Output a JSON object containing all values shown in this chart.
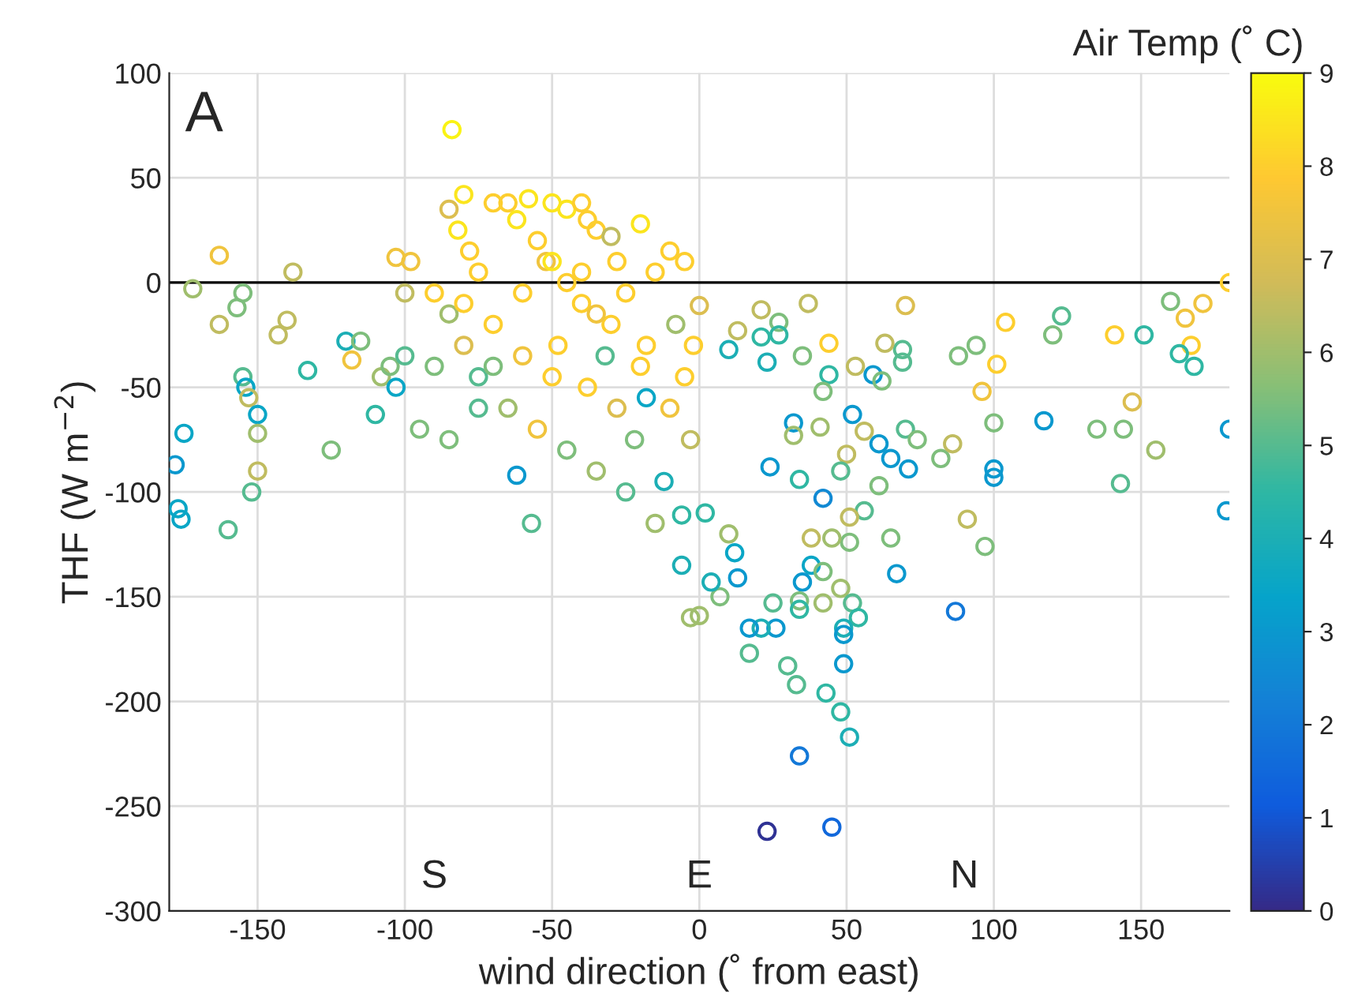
{
  "chart_data": {
    "type": "scatter",
    "xlabel": "wind direction (˚ from east)",
    "ylabel": "THF (W m$^{−2}$)",
    "clabel": "Air Temp (˚ C)",
    "xlim": [
      -180,
      180
    ],
    "xticks": [
      -150,
      -100,
      -50,
      0,
      50,
      100,
      150
    ],
    "ylim": [
      -300,
      100
    ],
    "yticks": [
      -300,
      -250,
      -200,
      -150,
      -100,
      -50,
      0,
      50,
      100
    ],
    "clim": [
      0,
      9
    ],
    "cticks": [
      0,
      1,
      2,
      3,
      4,
      5,
      6,
      7,
      8,
      9
    ],
    "grid": true,
    "marker": "circle",
    "ref_lines": [
      {
        "axis": "y",
        "value": 0,
        "color": "#000000"
      }
    ],
    "annotations": [
      "A",
      "S",
      "E",
      "N"
    ],
    "x": [
      -178,
      -177,
      -176,
      -175,
      -172,
      -163,
      -163,
      -160,
      -157,
      -155,
      -155,
      -154,
      -153,
      -152,
      -150,
      -150,
      -150,
      -143,
      -140,
      -138,
      -133,
      -125,
      -120,
      -118,
      -115,
      -110,
      -108,
      -105,
      -103,
      -103,
      -100,
      -100,
      -98,
      -84,
      -85,
      -80,
      -82,
      -78,
      -75,
      -70,
      -65,
      -62,
      -58,
      -55,
      -52,
      -50,
      -45,
      -40,
      -38,
      -35,
      -30,
      -28,
      -20,
      -15,
      -10,
      -5,
      -90,
      -85,
      -80,
      -75,
      -70,
      -65,
      -62,
      -60,
      -55,
      -57,
      -50,
      -48,
      -45,
      -40,
      -38,
      -35,
      -30,
      -28,
      -25,
      -22,
      -20,
      -18,
      -15,
      -12,
      -10,
      -8,
      -5,
      -3,
      -2,
      -60,
      -45,
      -35,
      -25,
      -70,
      -75,
      -90,
      -95,
      -85,
      -80,
      -50,
      -40,
      -32,
      -18,
      0,
      21,
      37,
      70,
      104,
      123,
      120,
      141,
      151,
      160,
      171,
      180,
      165,
      167,
      163,
      168,
      88,
      94,
      101,
      96,
      147,
      117,
      135,
      144,
      155,
      143,
      180,
      179,
      100,
      100,
      100,
      91,
      97,
      87,
      67,
      65,
      82,
      86,
      70,
      74,
      71,
      65,
      61,
      59,
      62,
      53,
      52,
      56,
      50,
      61,
      56,
      51,
      51,
      45,
      38,
      42,
      48,
      38,
      35,
      42,
      48,
      52,
      54,
      49,
      49,
      49,
      34,
      34,
      42,
      26,
      21,
      17,
      17,
      30,
      33,
      43,
      48,
      51,
      34,
      23,
      45,
      25,
      0,
      -3,
      7,
      4,
      13,
      12,
      -6,
      2,
      -6,
      10,
      23,
      27,
      27,
      21,
      44,
      35,
      44,
      42,
      32,
      24,
      34,
      32,
      41,
      69,
      69,
      63,
      10,
      13
    ],
    "values": [
      -87,
      -108,
      -113,
      -72,
      -3,
      13,
      -20,
      -118,
      -12,
      -5,
      -45,
      -50,
      -55,
      -100,
      -63,
      -72,
      -90,
      -25,
      -18,
      5,
      -42,
      -80,
      -28,
      -37,
      -28,
      -63,
      -45,
      -40,
      -50,
      12,
      -35,
      -5,
      10,
      73,
      35,
      42,
      25,
      15,
      5,
      38,
      38,
      30,
      40,
      20,
      10,
      38,
      35,
      38,
      30,
      25,
      22,
      10,
      28,
      5,
      15,
      10,
      -5,
      -15,
      -30,
      -45,
      -20,
      -60,
      -92,
      -35,
      -70,
      -115,
      -45,
      -30,
      -80,
      -10,
      -50,
      -90,
      -20,
      -60,
      -100,
      -75,
      -40,
      -30,
      -115,
      -95,
      -60,
      -20,
      -45,
      -75,
      -30,
      -5,
      0,
      -15,
      -5,
      -40,
      -60,
      -40,
      -70,
      -75,
      -10,
      10,
      5,
      -35,
      -55,
      -11,
      -13,
      -10,
      -11,
      -19,
      -16,
      -25,
      -25,
      -25,
      -9,
      -10,
      0,
      -17,
      -30,
      -34,
      -40,
      -35,
      -30,
      -39,
      -52,
      -57,
      -66,
      -70,
      -70,
      -80,
      -96,
      -70,
      -109,
      -67,
      -89,
      -93,
      -113,
      -126,
      -157,
      -139,
      -122,
      -84,
      -77,
      -70,
      -75,
      -89,
      -84,
      -77,
      -44,
      -47,
      -40,
      -63,
      -71,
      -82,
      -97,
      -109,
      -112,
      -124,
      -122,
      -122,
      -103,
      -90,
      -135,
      -143,
      -138,
      -146,
      -153,
      -160,
      -165,
      -168,
      -182,
      -152,
      -156,
      -153,
      -165,
      -165,
      -165,
      -177,
      -183,
      -192,
      -196,
      -205,
      -217,
      -226,
      -262,
      -260,
      -153,
      -159,
      -160,
      -150,
      -143,
      -141,
      -129,
      -135,
      -110,
      -111,
      -120,
      -38,
      -19,
      -25,
      -26,
      -29,
      -35,
      -44,
      -52,
      -67,
      -88,
      -94,
      -73,
      -69,
      -32,
      -38,
      -29,
      -32,
      -23
    ],
    "cvalues": [
      3,
      3.5,
      3.5,
      3.5,
      6,
      7.5,
      6.5,
      5,
      5.5,
      5.5,
      5,
      3.5,
      6.5,
      5,
      3.5,
      6,
      6.5,
      6.5,
      6.5,
      6.5,
      4.5,
      5.5,
      4,
      7.5,
      5.5,
      4.5,
      6,
      5.5,
      3.5,
      7.5,
      5,
      6.5,
      7.5,
      8.8,
      7,
      8.5,
      8.5,
      8,
      8,
      8,
      8,
      8.5,
      8.5,
      8,
      7.5,
      8.5,
      8.5,
      8,
      8,
      8,
      6.5,
      8,
      8.5,
      8,
      8,
      8,
      8,
      6,
      7,
      5,
      8,
      6,
      3,
      7.5,
      7.5,
      5,
      8,
      8,
      5.5,
      8,
      8,
      6,
      8,
      7,
      5,
      5.5,
      8,
      8,
      6,
      4,
      7.5,
      6,
      8,
      6.5,
      8,
      8,
      8,
      7.5,
      8,
      5.5,
      5,
      5.5,
      5.5,
      5.5,
      8,
      8.5,
      8,
      5,
      3.5,
      7,
      6.5,
      6.5,
      7,
      8,
      5,
      5.5,
      8,
      4.5,
      5.5,
      7.5,
      8,
      7.5,
      8,
      4.5,
      4.5,
      5.5,
      5.5,
      8,
      7.5,
      7,
      3,
      5.5,
      5.5,
      6,
      5,
      3,
      3,
      5.5,
      3,
      3,
      6.5,
      5.5,
      2,
      3,
      5.5,
      5.5,
      6.5,
      5,
      5.5,
      3,
      3,
      3,
      3,
      5.5,
      6.5,
      3,
      6.5,
      6.5,
      5.5,
      5,
      6.5,
      5.5,
      6,
      6.5,
      2.5,
      5,
      3.5,
      3,
      5.5,
      6,
      5,
      4.5,
      4,
      3,
      3,
      5.5,
      4.5,
      6,
      3,
      4,
      3,
      5,
      5,
      5,
      4.5,
      4.5,
      4,
      2,
      0.2,
      1.5,
      5,
      6,
      6,
      5.5,
      4,
      3,
      3.5,
      4,
      4.5,
      4.5,
      6,
      4,
      5.5,
      4.5,
      4.5,
      8,
      5.5,
      4.5,
      5.5,
      3,
      3,
      4.5,
      6,
      6,
      5,
      5,
      6.5,
      4,
      6.5
    ]
  }
}
